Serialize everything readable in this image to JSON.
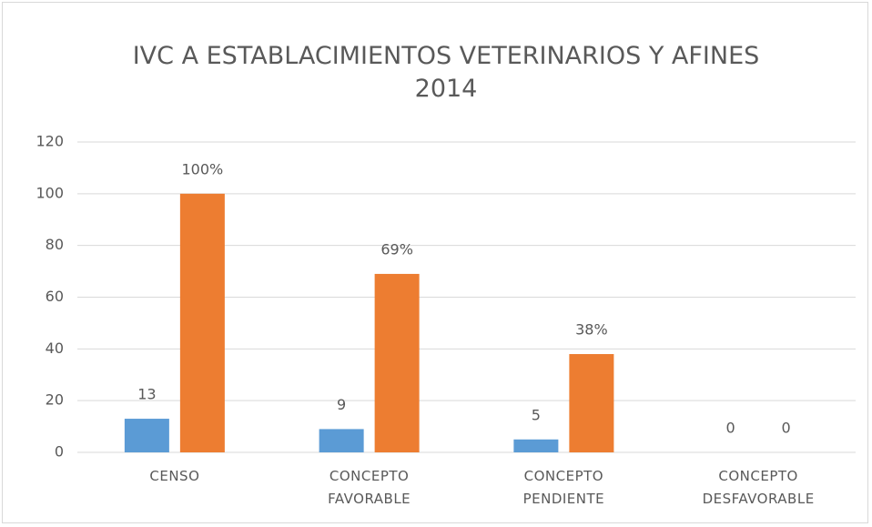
{
  "chart_data": {
    "type": "bar",
    "title": "IVC A ESTABLACIMIENTOS VETERINARIOS Y AFINES 2014",
    "categories": [
      "CENSO",
      "CONCEPTO FAVORABLE",
      "CONCEPTO PENDIENTE",
      "CONCEPTO DESFAVORABLE"
    ],
    "series": [
      {
        "color": "#5b9bd5",
        "values": [
          13,
          9,
          5,
          0
        ]
      },
      {
        "color": "#ed7d31",
        "values": [
          100,
          69,
          38,
          0
        ],
        "value_labels": [
          "100%",
          "69%",
          "38%",
          "0"
        ]
      }
    ],
    "ylim": [
      0,
      120
    ],
    "yticks": [
      0,
      20,
      40,
      60,
      80,
      100,
      120
    ],
    "grid": true
  }
}
